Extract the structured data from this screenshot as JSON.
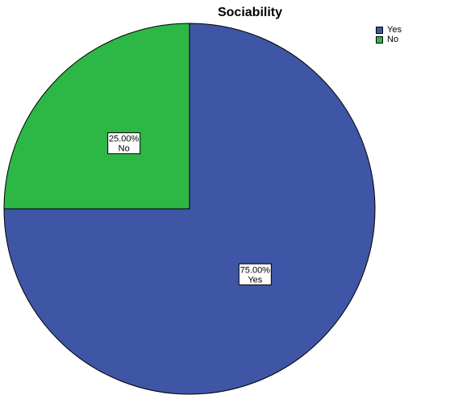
{
  "chart_data": {
    "type": "pie",
    "title": "Sociability",
    "categories": [
      "Yes",
      "No"
    ],
    "values": [
      75.0,
      25.0
    ],
    "value_labels": [
      "75.00%",
      "25.00%"
    ],
    "colors": [
      "#3F56A7",
      "#2DB747"
    ],
    "legend": {
      "position": "top-right",
      "entries": [
        "Yes",
        "No"
      ]
    }
  }
}
